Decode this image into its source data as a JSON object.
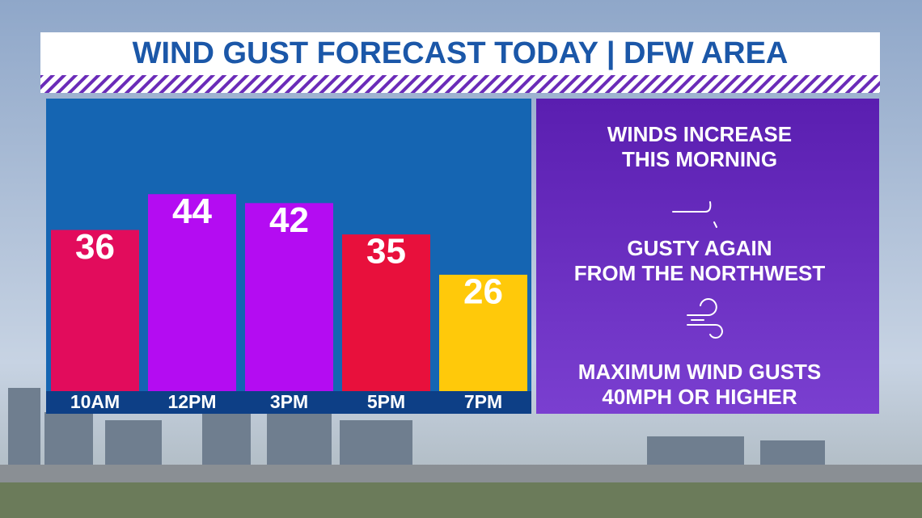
{
  "chart_data": {
    "type": "bar",
    "title": "WIND GUST FORECAST TODAY | DFW AREA",
    "categories": [
      "10AM",
      "12PM",
      "3PM",
      "5PM",
      "7PM"
    ],
    "values": [
      36,
      44,
      42,
      35,
      26
    ],
    "colors": [
      "#e20c5c",
      "#b40cf2",
      "#b40cf2",
      "#e8103c",
      "#ffc90a"
    ]
  },
  "sidebar": {
    "blocks": [
      [
        "WINDS INCREASE",
        "THIS MORNING"
      ],
      [
        "GUSTY AGAIN",
        "FROM THE NORTHWEST"
      ],
      [
        "MAXIMUM WIND GUSTS",
        "40MPH OR HIGHER"
      ]
    ]
  }
}
